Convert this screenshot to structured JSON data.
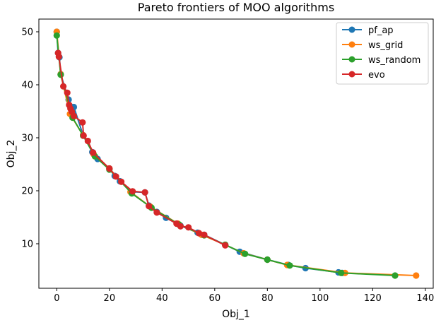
{
  "chart_data": {
    "type": "line",
    "title": "Pareto frontiers of MOO algorithms",
    "xlabel": "Obj_1",
    "ylabel": "Obj_2",
    "xlim": [
      -6.8,
      143.0
    ],
    "ylim": [
      1.6,
      52.4
    ],
    "xticks": [
      0,
      20,
      40,
      60,
      80,
      100,
      120,
      140
    ],
    "yticks": [
      10,
      20,
      30,
      40,
      50
    ],
    "legend_position": "top-right",
    "series": [
      {
        "name": "pf_ap",
        "color": "#1f77b4",
        "points": [
          [
            0.0,
            50.0
          ],
          [
            0.5,
            46.0
          ],
          [
            1.0,
            45.2
          ],
          [
            1.5,
            42.0
          ],
          [
            4.5,
            37.2
          ],
          [
            5.0,
            36.0
          ],
          [
            6.5,
            35.8
          ],
          [
            10.0,
            30.5
          ],
          [
            13.5,
            27.3
          ],
          [
            15.5,
            26.0
          ],
          [
            20.0,
            24.2
          ],
          [
            22.0,
            22.8
          ],
          [
            24.0,
            21.8
          ],
          [
            28.5,
            19.8
          ],
          [
            33.5,
            19.7
          ],
          [
            35.0,
            17.2
          ],
          [
            38.0,
            16.0
          ],
          [
            41.5,
            14.9
          ],
          [
            47.0,
            13.4
          ],
          [
            53.5,
            12.1
          ],
          [
            56.0,
            11.7
          ],
          [
            64.0,
            9.8
          ],
          [
            69.5,
            8.5
          ],
          [
            80.0,
            7.0
          ],
          [
            88.0,
            6.0
          ],
          [
            94.5,
            5.4
          ],
          [
            107.0,
            4.6
          ],
          [
            108.5,
            4.5
          ]
        ]
      },
      {
        "name": "ws_grid",
        "color": "#ff7f0e",
        "points": [
          [
            0.0,
            50.0
          ],
          [
            1.5,
            42.0
          ],
          [
            5.0,
            34.5
          ],
          [
            10.0,
            30.5
          ],
          [
            14.0,
            26.9
          ],
          [
            20.0,
            24.2
          ],
          [
            28.0,
            19.8
          ],
          [
            35.5,
            17.0
          ],
          [
            46.0,
            13.8
          ],
          [
            55.0,
            11.7
          ],
          [
            64.0,
            9.8
          ],
          [
            71.0,
            8.2
          ],
          [
            80.0,
            7.0
          ],
          [
            87.5,
            6.0
          ],
          [
            109.5,
            4.5
          ],
          [
            136.5,
            4.0
          ]
        ]
      },
      {
        "name": "ws_random",
        "color": "#2ca02c",
        "points": [
          [
            0.0,
            49.3
          ],
          [
            1.5,
            41.9
          ],
          [
            6.0,
            33.8
          ],
          [
            10.0,
            30.4
          ],
          [
            14.5,
            26.5
          ],
          [
            20.0,
            24.0
          ],
          [
            28.5,
            19.5
          ],
          [
            36.0,
            16.8
          ],
          [
            46.5,
            13.6
          ],
          [
            56.0,
            11.6
          ],
          [
            64.0,
            9.8
          ],
          [
            71.5,
            8.1
          ],
          [
            80.0,
            7.0
          ],
          [
            88.5,
            5.9
          ],
          [
            108.0,
            4.5
          ],
          [
            128.5,
            4.0
          ]
        ]
      },
      {
        "name": "evo",
        "color": "#d62728",
        "points": [
          [
            0.5,
            46.0
          ],
          [
            0.8,
            45.3
          ],
          [
            2.5,
            39.7
          ],
          [
            4.0,
            38.5
          ],
          [
            4.7,
            36.2
          ],
          [
            5.2,
            35.5
          ],
          [
            5.7,
            34.9
          ],
          [
            6.5,
            34.1
          ],
          [
            9.8,
            32.9
          ],
          [
            10.2,
            30.4
          ],
          [
            11.8,
            29.4
          ],
          [
            13.8,
            27.2
          ],
          [
            20.0,
            24.2
          ],
          [
            22.5,
            22.7
          ],
          [
            24.5,
            21.7
          ],
          [
            28.8,
            19.9
          ],
          [
            33.5,
            19.7
          ],
          [
            35.0,
            17.1
          ],
          [
            38.0,
            15.9
          ],
          [
            45.5,
            13.8
          ],
          [
            47.0,
            13.3
          ],
          [
            50.0,
            13.1
          ],
          [
            54.0,
            12.0
          ],
          [
            56.0,
            11.7
          ],
          [
            64.0,
            9.7
          ]
        ]
      }
    ]
  }
}
